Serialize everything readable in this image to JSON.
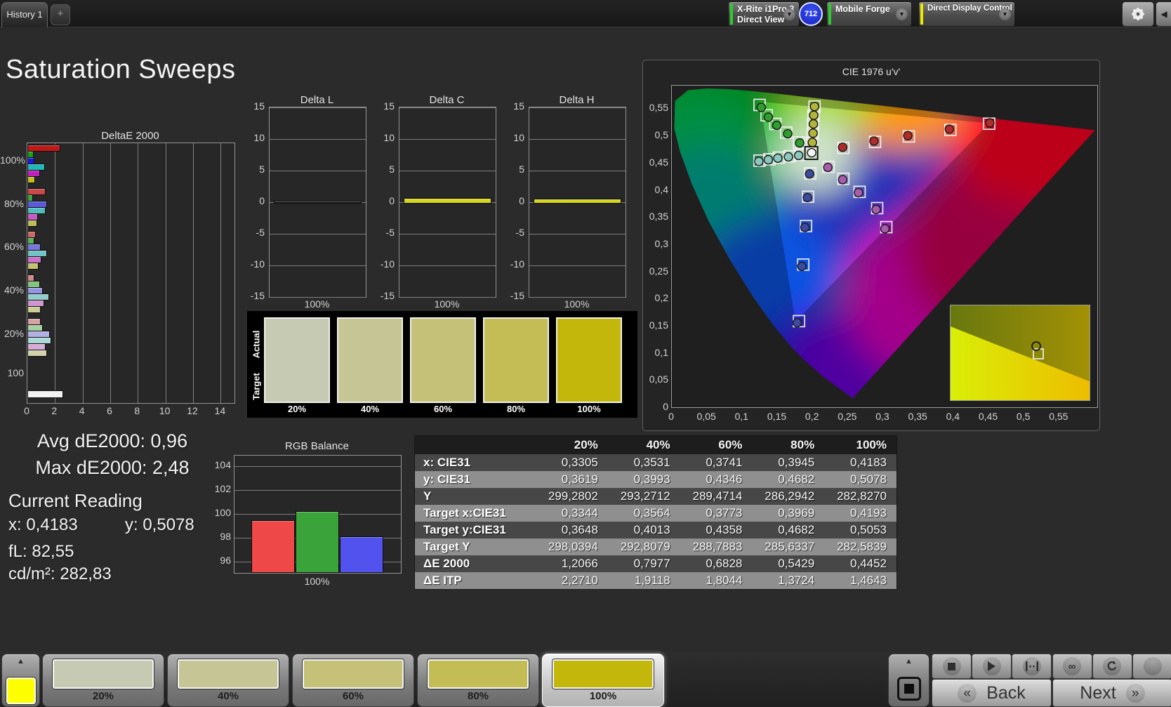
{
  "topbar": {
    "tab": "History 1",
    "add_tab": "+",
    "meter_line1": "X-Rite i1Pro 3",
    "meter_line2": "Direct View",
    "badge": "712",
    "source": "Mobile Forge",
    "workflow": "Direct Display Control",
    "stripe_green": "#2ecc2e",
    "stripe_yellow": "#e8e800",
    "chevron": "▼",
    "collapse": "◀"
  },
  "page_title": "Saturation Sweeps",
  "chart_data": [
    {
      "id": "deltae2000",
      "type": "bar",
      "orientation": "horizontal",
      "title": "DeltaE 2000",
      "xlim": [
        0,
        15
      ],
      "xticks": [
        0,
        2,
        4,
        6,
        8,
        10,
        12,
        14
      ],
      "groups": [
        {
          "label": "100%",
          "values": [
            2.3,
            0.35,
            0.4,
            1.15,
            0.8,
            0.45
          ],
          "colors": [
            "#c01818",
            "#18a018",
            "#1a1ae0",
            "#20b8b8",
            "#c020c0",
            "#c0c020"
          ]
        },
        {
          "label": "80%",
          "values": [
            1.2,
            0.3,
            1.3,
            1.2,
            0.65,
            0.6
          ],
          "colors": [
            "#c84848",
            "#38a838",
            "#5858d8",
            "#50bcbc",
            "#c858c8",
            "#bcbc58"
          ]
        },
        {
          "label": "60%",
          "values": [
            0.5,
            0.4,
            0.85,
            1.3,
            0.9,
            0.7
          ],
          "colors": [
            "#cc6868",
            "#58b058",
            "#7878dc",
            "#70c4c4",
            "#cc70cc",
            "#c4c470"
          ]
        },
        {
          "label": "40%",
          "values": [
            0.4,
            0.8,
            1.0,
            1.45,
            1.1,
            0.85
          ],
          "colors": [
            "#d08888",
            "#80c480",
            "#9494e0",
            "#94cccc",
            "#d094d0",
            "#cccc94"
          ]
        },
        {
          "label": "20%",
          "values": [
            0.85,
            1.0,
            1.5,
            1.65,
            1.2,
            1.3
          ],
          "colors": [
            "#d4a4a4",
            "#a4d0a4",
            "#b0b0e4",
            "#acd8d8",
            "#d8acd8",
            "#d4d4ac"
          ]
        },
        {
          "label": "100",
          "values": [
            2.48
          ],
          "colors": [
            "#f2f2f2"
          ]
        }
      ]
    },
    {
      "id": "deltaL",
      "type": "bar",
      "title": "Delta L",
      "xlabel": "100%",
      "ylim": [
        -15,
        15
      ],
      "yticks": [
        15,
        10,
        5,
        0,
        -5,
        -10,
        -15
      ],
      "values": [
        0.06
      ],
      "colors": [
        "#161616"
      ]
    },
    {
      "id": "deltaC",
      "type": "bar",
      "title": "Delta C",
      "xlabel": "100%",
      "ylim": [
        -15,
        15
      ],
      "yticks": [
        15,
        10,
        5,
        0,
        -5,
        -10,
        -15
      ],
      "values": [
        0.7
      ],
      "colors": [
        "#d6d61e"
      ]
    },
    {
      "id": "deltaH",
      "type": "bar",
      "title": "Delta H",
      "xlabel": "100%",
      "ylim": [
        -15,
        15
      ],
      "yticks": [
        15,
        10,
        5,
        0,
        -5,
        -10,
        -15
      ],
      "values": [
        0.55
      ],
      "colors": [
        "#d6d61e"
      ]
    },
    {
      "id": "rgb",
      "type": "bar",
      "title": "RGB Balance",
      "xlabel": "100%",
      "ylim": [
        95,
        105.3
      ],
      "yticks": [
        104,
        102,
        100,
        98,
        96
      ],
      "categories": [
        "Red",
        "Green",
        "Blue"
      ],
      "values": [
        99.5,
        100.25,
        98.1
      ],
      "colors": [
        "#ee4848",
        "#3aa33a",
        "#5252ee"
      ]
    },
    {
      "id": "cie",
      "type": "scatter",
      "title": "CIE 1976 u'v'",
      "xlim": [
        0,
        0.604
      ],
      "ylim": [
        0,
        0.592
      ],
      "xtick_labels": [
        "0",
        "0,05",
        "0,1",
        "0,15",
        "0,2",
        "0,25",
        "0,3",
        "0,35",
        "0,4",
        "0,45",
        "0,5",
        "0,55"
      ],
      "ytick_labels": [
        "0,55",
        "0,5",
        "0,45",
        "0,4",
        "0,35",
        "0,3",
        "0,25",
        "0,2",
        "0,15",
        "0,1",
        "0,05",
        "0"
      ],
      "white_point": {
        "target": [
          0.198,
          0.468
        ],
        "measured": [
          0.1985,
          0.4685
        ],
        "color": "#f5f5f5"
      },
      "series": [
        {
          "name": "yellow",
          "color": "#b4b43c",
          "targets": [
            [
              0.199,
              0.487
            ],
            [
              0.2,
              0.504
            ],
            [
              0.2005,
              0.521
            ],
            [
              0.201,
              0.537
            ],
            [
              0.2026,
              0.5535
            ]
          ],
          "measured": [
            [
              0.1995,
              0.4875
            ],
            [
              0.2005,
              0.5045
            ],
            [
              0.201,
              0.5215
            ],
            [
              0.2015,
              0.5375
            ],
            [
              0.2026,
              0.5535
            ]
          ]
        },
        {
          "name": "green",
          "color": "#2f9e2f",
          "targets": [
            [
              0.1805,
              0.4875
            ],
            [
              0.1625,
              0.5055
            ],
            [
              0.147,
              0.5215
            ],
            [
              0.1345,
              0.5375
            ],
            [
              0.1245,
              0.5565
            ]
          ],
          "measured": [
            [
              0.1815,
              0.4865
            ],
            [
              0.1645,
              0.5035
            ],
            [
              0.149,
              0.519
            ],
            [
              0.137,
              0.534
            ],
            [
              0.127,
              0.552
            ]
          ]
        },
        {
          "name": "red",
          "color": "#b22a2a",
          "targets": [
            [
              0.2435,
              0.4775
            ],
            [
              0.2885,
              0.4885
            ],
            [
              0.3365,
              0.4985
            ],
            [
              0.3955,
              0.5105
            ],
            [
              0.4505,
              0.522
            ]
          ],
          "measured": [
            [
              0.2425,
              0.4785
            ],
            [
              0.287,
              0.49
            ],
            [
              0.335,
              0.5
            ],
            [
              0.394,
              0.512
            ],
            [
              0.4515,
              0.5235
            ]
          ]
        },
        {
          "name": "cyan",
          "color": "#8cc8c0",
          "targets": [
            [
              0.1815,
              0.4645
            ],
            [
              0.167,
              0.462
            ],
            [
              0.152,
              0.4595
            ],
            [
              0.1385,
              0.4565
            ],
            [
              0.1245,
              0.454
            ]
          ],
          "measured": [
            [
              0.18,
              0.4635
            ],
            [
              0.1655,
              0.461
            ],
            [
              0.1505,
              0.4585
            ],
            [
              0.137,
              0.4555
            ],
            [
              0.1235,
              0.4525
            ]
          ]
        },
        {
          "name": "magenta",
          "color": "#aa5cac",
          "targets": [
            [
              0.2225,
              0.4425
            ],
            [
              0.2435,
              0.4205
            ],
            [
              0.2665,
              0.3965
            ],
            [
              0.2915,
              0.3665
            ],
            [
              0.3045,
              0.3315
            ]
          ],
          "measured": [
            [
              0.2215,
              0.4415
            ],
            [
              0.2425,
              0.419
            ],
            [
              0.265,
              0.395
            ],
            [
              0.29,
              0.364
            ],
            [
              0.3025,
              0.3285
            ]
          ]
        },
        {
          "name": "blue",
          "color": "#3c4aa0",
          "targets": [
            [
              0.1965,
              0.4305
            ],
            [
              0.1935,
              0.3875
            ],
            [
              0.1905,
              0.3335
            ],
            [
              0.1865,
              0.2625
            ],
            [
              0.1805,
              0.1585
            ]
          ],
          "measured": [
            [
              0.1955,
              0.4295
            ],
            [
              0.1925,
              0.386
            ],
            [
              0.189,
              0.331
            ],
            [
              0.1845,
              0.2595
            ],
            [
              0.178,
              0.1555
            ]
          ]
        }
      ]
    }
  ],
  "swatch_panel": {
    "row_labels": [
      "Actual",
      "Target"
    ],
    "levels": [
      "20%",
      "40%",
      "60%",
      "80%",
      "100%"
    ],
    "colors": [
      "#c7cab2",
      "#c6c595",
      "#c5c178",
      "#c4bd56",
      "#c3b70b"
    ]
  },
  "stats": {
    "avg": "Avg dE2000: 0,96",
    "max": "Max dE2000: 2,48",
    "current_title": "Current Reading",
    "x": "x: 0,4183",
    "y": "y: 0,5078",
    "fl": "fL: 82,55",
    "cd": "cd/m²: 282,83"
  },
  "table": {
    "columns": [
      "",
      "20%",
      "40%",
      "60%",
      "80%",
      "100%"
    ],
    "rows": [
      {
        "label": "x: CIE31",
        "values": [
          "0,3305",
          "0,3531",
          "0,3741",
          "0,3945",
          "0,4183"
        ]
      },
      {
        "label": "y: CIE31",
        "values": [
          "0,3619",
          "0,3993",
          "0,4346",
          "0,4682",
          "0,5078"
        ]
      },
      {
        "label": "Y",
        "values": [
          "299,2802",
          "293,2712",
          "289,4714",
          "286,2942",
          "282,8270"
        ]
      },
      {
        "label": "Target x:CIE31",
        "values": [
          "0,3344",
          "0,3564",
          "0,3773",
          "0,3969",
          "0,4193"
        ]
      },
      {
        "label": "Target y:CIE31",
        "values": [
          "0,3648",
          "0,4013",
          "0,4358",
          "0,4682",
          "0,5053"
        ]
      },
      {
        "label": "Target Y",
        "values": [
          "298,0394",
          "292,8079",
          "288,7883",
          "285,6337",
          "282,5839"
        ]
      },
      {
        "label": "ΔE 2000",
        "values": [
          "1,2066",
          "0,7977",
          "0,6828",
          "0,5429",
          "0,4452"
        ]
      },
      {
        "label": "ΔE ITP",
        "values": [
          "2,2710",
          "1,9118",
          "1,8044",
          "1,3724",
          "1,4643"
        ]
      }
    ]
  },
  "bottom_bar": {
    "patch_color": "#ffff00",
    "buttons": [
      {
        "label": "20%",
        "color": "#c7cab2"
      },
      {
        "label": "40%",
        "color": "#c6c595"
      },
      {
        "label": "60%",
        "color": "#c5c178"
      },
      {
        "label": "80%",
        "color": "#c4bd56"
      },
      {
        "label": "100%",
        "color": "#c3b70b"
      }
    ],
    "selected_index": 4,
    "transport": [
      "stop",
      "play",
      "range",
      "loop",
      "refresh",
      "extra"
    ],
    "back": "Back",
    "next": "Next",
    "back_chev": "«",
    "next_chev": "»",
    "up_arrow": "▲"
  }
}
